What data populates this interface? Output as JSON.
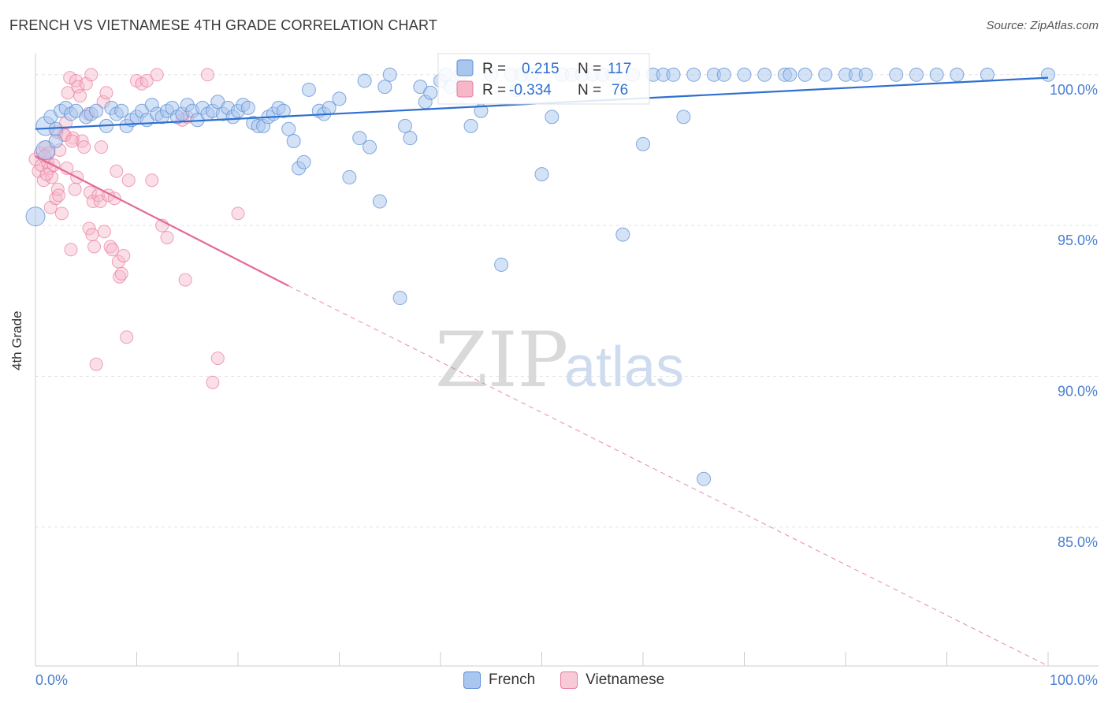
{
  "title": "FRENCH VS VIETNAMESE 4TH GRADE CORRELATION CHART",
  "source": "Source: ZipAtlas.com",
  "watermark": {
    "zip": "ZIP",
    "atlas": "atlas"
  },
  "colors": {
    "french": "#a9c6ee",
    "french_stroke": "#5b8fd6",
    "french_line": "#2f6fd0",
    "vietnamese": "#f6b8c9",
    "vietnamese_stroke": "#e87aa0",
    "vietnamese_line": "#e4699a",
    "axis_text": "#4a7fd0",
    "grid": "#e3e3e3"
  },
  "legend": {
    "french": {
      "r_label": "R =",
      "r_value": "0.215",
      "n_label": "N =",
      "n_value": "117"
    },
    "vietnamese": {
      "r_label": "R =",
      "r_value": "-0.334",
      "n_label": "N =",
      "n_value": "76"
    }
  },
  "bottom_legend": {
    "french": "French",
    "vietnamese": "Vietnamese"
  },
  "chart_data": {
    "type": "scatter",
    "title": "FRENCH VS VIETNAMESE 4TH GRADE CORRELATION CHART",
    "ylabel": "4th Grade",
    "xlabel": "",
    "xlim": [
      0,
      100
    ],
    "ylim": [
      80.4,
      100.7
    ],
    "x_ticks": [
      "0.0%",
      "100.0%"
    ],
    "y_ticks": [
      {
        "value": 100,
        "label": "100.0%"
      },
      {
        "value": 95,
        "label": "95.0%"
      },
      {
        "value": 90,
        "label": "90.0%"
      },
      {
        "value": 85,
        "label": "85.0%"
      }
    ],
    "grid": true,
    "series": [
      {
        "name": "French",
        "trend": {
          "x0": 0,
          "y0": 98.2,
          "x1": 100,
          "y1": 99.9
        },
        "points": [
          [
            0,
            95.3
          ],
          [
            1,
            97.5
          ],
          [
            1,
            98.3
          ],
          [
            1.5,
            98.6
          ],
          [
            2,
            97.8
          ],
          [
            2,
            98.2
          ],
          [
            2.5,
            98.8
          ],
          [
            3,
            98.9
          ],
          [
            3.5,
            98.7
          ],
          [
            4,
            98.8
          ],
          [
            5,
            98.6
          ],
          [
            5.5,
            98.7
          ],
          [
            6,
            98.8
          ],
          [
            7,
            98.3
          ],
          [
            7.5,
            98.9
          ],
          [
            8,
            98.7
          ],
          [
            8.5,
            98.8
          ],
          [
            9,
            98.3
          ],
          [
            9.5,
            98.5
          ],
          [
            10,
            98.6
          ],
          [
            10.5,
            98.8
          ],
          [
            11,
            98.5
          ],
          [
            11.5,
            99.0
          ],
          [
            12,
            98.7
          ],
          [
            12.5,
            98.6
          ],
          [
            13,
            98.8
          ],
          [
            13.5,
            98.9
          ],
          [
            14,
            98.6
          ],
          [
            14.5,
            98.7
          ],
          [
            15,
            99.0
          ],
          [
            15.5,
            98.8
          ],
          [
            16,
            98.5
          ],
          [
            16.5,
            98.9
          ],
          [
            17,
            98.7
          ],
          [
            17.5,
            98.8
          ],
          [
            18,
            99.1
          ],
          [
            18.5,
            98.7
          ],
          [
            19,
            98.9
          ],
          [
            19.5,
            98.6
          ],
          [
            20,
            98.8
          ],
          [
            20.5,
            99.0
          ],
          [
            21,
            98.9
          ],
          [
            21.5,
            98.4
          ],
          [
            22,
            98.3
          ],
          [
            22.5,
            98.3
          ],
          [
            23,
            98.6
          ],
          [
            23.5,
            98.7
          ],
          [
            24,
            98.9
          ],
          [
            24.5,
            98.8
          ],
          [
            25,
            98.2
          ],
          [
            25.5,
            97.8
          ],
          [
            26,
            96.9
          ],
          [
            26.5,
            97.1
          ],
          [
            27,
            99.5
          ],
          [
            28,
            98.8
          ],
          [
            28.5,
            98.7
          ],
          [
            29,
            98.9
          ],
          [
            30,
            99.2
          ],
          [
            31,
            96.6
          ],
          [
            32,
            97.9
          ],
          [
            32.5,
            99.8
          ],
          [
            33,
            97.6
          ],
          [
            34,
            95.8
          ],
          [
            34.5,
            99.6
          ],
          [
            35,
            100
          ],
          [
            36,
            92.6
          ],
          [
            36.5,
            98.3
          ],
          [
            37,
            97.9
          ],
          [
            38,
            99.6
          ],
          [
            38.5,
            99.1
          ],
          [
            39,
            99.4
          ],
          [
            40,
            99.8
          ],
          [
            40.5,
            100
          ],
          [
            41,
            99.6
          ],
          [
            42,
            100
          ],
          [
            43,
            98.3
          ],
          [
            44,
            98.8
          ],
          [
            45,
            100
          ],
          [
            46,
            93.7
          ],
          [
            47,
            100
          ],
          [
            47.5,
            99.5
          ],
          [
            48,
            100
          ],
          [
            49,
            100
          ],
          [
            50,
            96.7
          ],
          [
            51,
            98.6
          ],
          [
            52,
            100
          ],
          [
            53,
            100
          ],
          [
            54,
            100
          ],
          [
            55,
            100
          ],
          [
            56,
            100
          ],
          [
            57,
            100
          ],
          [
            58,
            94.7
          ],
          [
            59,
            100
          ],
          [
            60,
            97.7
          ],
          [
            61,
            100
          ],
          [
            62,
            100
          ],
          [
            63,
            100
          ],
          [
            64,
            98.6
          ],
          [
            65,
            100
          ],
          [
            66,
            86.6
          ],
          [
            67,
            100
          ],
          [
            68,
            100
          ],
          [
            70,
            100
          ],
          [
            72,
            100
          ],
          [
            74,
            100
          ],
          [
            74.5,
            100
          ],
          [
            76,
            100
          ],
          [
            78,
            100
          ],
          [
            80,
            100
          ],
          [
            81,
            100
          ],
          [
            82,
            100
          ],
          [
            85,
            100
          ],
          [
            87,
            100
          ],
          [
            89,
            100
          ],
          [
            91,
            100
          ],
          [
            94,
            100
          ],
          [
            100,
            100
          ]
        ]
      },
      {
        "name": "Vietnamese",
        "trend": {
          "x0": 0,
          "y0": 97.3,
          "x1": 25,
          "y1": 93.0,
          "dash_to_x": 100,
          "dash_to_y": 80.4
        },
        "points": [
          [
            0,
            97.2
          ],
          [
            0.3,
            96.8
          ],
          [
            0.5,
            97.4
          ],
          [
            0.6,
            97.0
          ],
          [
            0.8,
            96.5
          ],
          [
            1,
            97.6
          ],
          [
            1.2,
            97.1
          ],
          [
            1.4,
            96.9
          ],
          [
            1.5,
            95.6
          ],
          [
            1.6,
            96.6
          ],
          [
            1.8,
            97.0
          ],
          [
            2,
            95.9
          ],
          [
            2.2,
            96.2
          ],
          [
            2.4,
            97.5
          ],
          [
            2.6,
            95.4
          ],
          [
            2.8,
            98.0
          ],
          [
            3,
            98.4
          ],
          [
            3.2,
            99.4
          ],
          [
            3.4,
            99.9
          ],
          [
            3.5,
            94.2
          ],
          [
            3.7,
            97.9
          ],
          [
            3.9,
            96.2
          ],
          [
            4,
            99.8
          ],
          [
            4.2,
            99.6
          ],
          [
            4.4,
            99.3
          ],
          [
            4.6,
            97.8
          ],
          [
            4.8,
            97.6
          ],
          [
            5,
            99.7
          ],
          [
            5.2,
            98.7
          ],
          [
            5.3,
            94.9
          ],
          [
            5.4,
            96.1
          ],
          [
            5.5,
            100
          ],
          [
            5.6,
            94.7
          ],
          [
            5.7,
            95.8
          ],
          [
            5.8,
            94.3
          ],
          [
            6,
            90.4
          ],
          [
            6.2,
            96.0
          ],
          [
            6.4,
            95.8
          ],
          [
            6.5,
            97.6
          ],
          [
            6.7,
            99.1
          ],
          [
            6.8,
            94.8
          ],
          [
            7,
            99.4
          ],
          [
            7.2,
            96.0
          ],
          [
            7.4,
            94.3
          ],
          [
            7.6,
            94.2
          ],
          [
            7.8,
            95.9
          ],
          [
            8,
            96.8
          ],
          [
            8.2,
            93.8
          ],
          [
            8.3,
            93.3
          ],
          [
            8.5,
            93.4
          ],
          [
            8.7,
            94.0
          ],
          [
            9,
            91.3
          ],
          [
            9.2,
            96.5
          ],
          [
            10,
            99.8
          ],
          [
            10.5,
            99.7
          ],
          [
            11,
            99.8
          ],
          [
            11.5,
            96.5
          ],
          [
            12,
            100
          ],
          [
            12.5,
            95.0
          ],
          [
            13,
            94.6
          ],
          [
            14.5,
            98.5
          ],
          [
            14.8,
            93.2
          ],
          [
            15,
            98.6
          ],
          [
            17,
            100
          ],
          [
            17.5,
            89.8
          ],
          [
            18,
            90.6
          ],
          [
            20,
            95.4
          ],
          [
            2.1,
            98.1
          ],
          [
            2.9,
            98.0
          ],
          [
            3.6,
            97.8
          ],
          [
            4.1,
            96.6
          ],
          [
            1.3,
            97.4
          ],
          [
            0.9,
            97.3
          ],
          [
            2.3,
            96.0
          ],
          [
            3.1,
            96.9
          ],
          [
            1.1,
            96.7
          ]
        ]
      }
    ]
  }
}
